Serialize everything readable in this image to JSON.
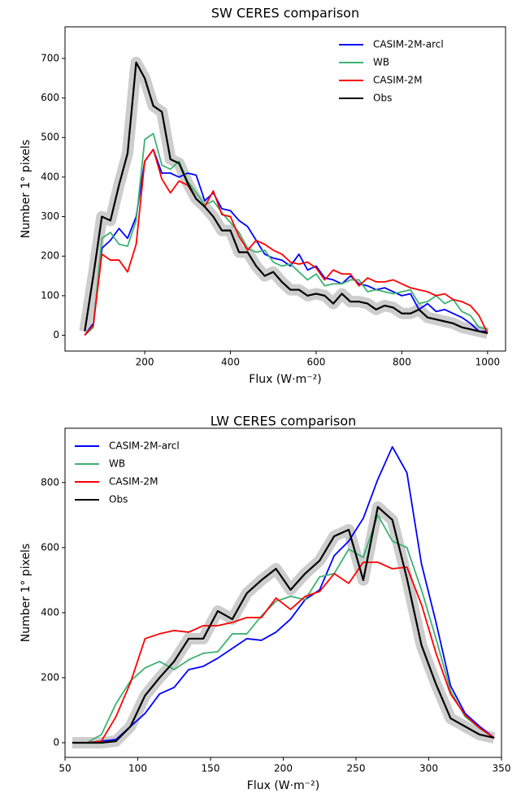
{
  "chart_data": [
    {
      "type": "line",
      "title": "SW CERES comparison",
      "x_label": "Flux (W·m⁻²)",
      "y_label": "Number 1° pixels",
      "x": [
        60,
        80,
        100,
        120,
        140,
        160,
        180,
        200,
        220,
        240,
        260,
        280,
        300,
        320,
        340,
        360,
        380,
        400,
        420,
        440,
        460,
        480,
        500,
        520,
        540,
        560,
        580,
        600,
        620,
        640,
        660,
        680,
        700,
        720,
        740,
        760,
        780,
        800,
        820,
        840,
        860,
        880,
        900,
        920,
        940,
        960,
        980,
        1000
      ],
      "xlim": [
        14,
        1042
      ],
      "xticks": [
        200,
        400,
        600,
        800,
        1000
      ],
      "ylim": [
        -40,
        780
      ],
      "yticks": [
        0,
        100,
        200,
        300,
        400,
        500,
        600,
        700
      ],
      "legend": "upper right",
      "series": [
        {
          "name": "CASIM-2M-arcl",
          "color": "#0000ff",
          "values": [
            0,
            30,
            220,
            240,
            270,
            245,
            300,
            440,
            470,
            410,
            410,
            400,
            410,
            405,
            340,
            360,
            320,
            315,
            290,
            275,
            240,
            205,
            195,
            190,
            175,
            205,
            165,
            175,
            145,
            140,
            130,
            150,
            130,
            125,
            115,
            120,
            110,
            100,
            105,
            65,
            80,
            60,
            65,
            55,
            45,
            30,
            10,
            10
          ]
        },
        {
          "name": "WB",
          "color": "#3cb371",
          "values": [
            0,
            20,
            245,
            260,
            230,
            225,
            290,
            495,
            510,
            430,
            420,
            440,
            390,
            360,
            330,
            340,
            310,
            285,
            260,
            220,
            210,
            215,
            185,
            175,
            180,
            160,
            140,
            155,
            125,
            130,
            130,
            140,
            140,
            110,
            115,
            110,
            105,
            110,
            115,
            80,
            85,
            100,
            80,
            90,
            60,
            50,
            20,
            15
          ]
        },
        {
          "name": "CASIM-2M",
          "color": "#ff0000",
          "values": [
            0,
            25,
            205,
            190,
            190,
            160,
            230,
            440,
            470,
            395,
            360,
            390,
            380,
            345,
            325,
            365,
            305,
            300,
            250,
            215,
            240,
            230,
            215,
            205,
            185,
            180,
            185,
            170,
            140,
            165,
            155,
            155,
            125,
            145,
            135,
            135,
            140,
            130,
            120,
            115,
            110,
            100,
            105,
            90,
            85,
            75,
            50,
            5
          ]
        },
        {
          "name": "Obs",
          "color": "#000000",
          "band": true,
          "values": [
            10,
            150,
            300,
            290,
            380,
            460,
            690,
            650,
            580,
            565,
            445,
            435,
            385,
            345,
            325,
            300,
            265,
            265,
            210,
            210,
            175,
            150,
            160,
            135,
            115,
            115,
            100,
            105,
            100,
            80,
            105,
            85,
            85,
            80,
            65,
            75,
            70,
            55,
            55,
            65,
            45,
            40,
            35,
            30,
            20,
            15,
            10,
            5
          ]
        }
      ]
    },
    {
      "type": "line",
      "title": "LW CERES comparison",
      "x_label": "Flux (W·m⁻²)",
      "y_label": "Number 1° pixels",
      "x": [
        55,
        65,
        75,
        85,
        95,
        105,
        115,
        125,
        135,
        145,
        155,
        165,
        175,
        185,
        195,
        205,
        215,
        225,
        235,
        245,
        255,
        265,
        275,
        285,
        295,
        305,
        315,
        325,
        335,
        345
      ],
      "xlim": [
        50,
        350
      ],
      "xticks": [
        50,
        100,
        150,
        200,
        250,
        300,
        350
      ],
      "ylim": [
        -45,
        967
      ],
      "yticks": [
        0,
        200,
        400,
        600,
        800
      ],
      "legend": "upper left",
      "series": [
        {
          "name": "CASIM-2M-arcl",
          "color": "#0000ff",
          "values": [
            0,
            0,
            5,
            10,
            50,
            90,
            150,
            170,
            225,
            235,
            260,
            290,
            320,
            315,
            340,
            380,
            440,
            470,
            575,
            620,
            690,
            810,
            910,
            830,
            550,
            370,
            175,
            90,
            50,
            15
          ]
        },
        {
          "name": "WB",
          "color": "#3cb371",
          "values": [
            0,
            0,
            25,
            120,
            190,
            230,
            250,
            225,
            255,
            275,
            280,
            335,
            335,
            390,
            435,
            450,
            440,
            510,
            520,
            595,
            570,
            700,
            620,
            600,
            470,
            320,
            160,
            80,
            45,
            15
          ]
        },
        {
          "name": "CASIM-2M",
          "color": "#ff0000",
          "values": [
            0,
            0,
            5,
            80,
            185,
            320,
            335,
            345,
            340,
            360,
            360,
            370,
            385,
            385,
            445,
            410,
            450,
            465,
            520,
            490,
            555,
            555,
            535,
            540,
            425,
            275,
            150,
            85,
            45,
            15
          ]
        },
        {
          "name": "Obs",
          "color": "#000000",
          "band": true,
          "values": [
            0,
            0,
            0,
            5,
            50,
            145,
            200,
            250,
            320,
            320,
            405,
            380,
            460,
            500,
            535,
            470,
            520,
            560,
            635,
            655,
            500,
            725,
            685,
            505,
            300,
            180,
            75,
            50,
            25,
            15
          ]
        }
      ]
    }
  ]
}
